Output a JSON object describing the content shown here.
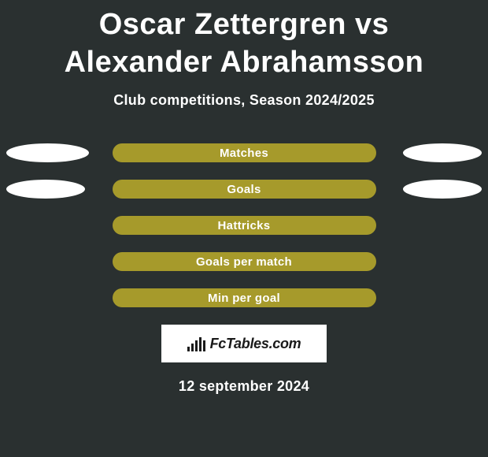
{
  "background_color": "#2a3030",
  "title": "Oscar Zettergren vs Alexander Abrahamsson",
  "title_fontsize": 38,
  "title_color": "#ffffff",
  "subtitle": "Club competitions, Season 2024/2025",
  "subtitle_fontsize": 18,
  "comparison": {
    "type": "horizontal-bar-comparison",
    "center_bar_width": 335,
    "center_bar_color": "#a69a2b",
    "center_bar_text_color": "#ffffff",
    "bubble_color": "#ffffff",
    "rows": [
      {
        "label": "Matches",
        "left_bubble_width": 105,
        "right_bubble_width": 100
      },
      {
        "label": "Goals",
        "left_bubble_width": 100,
        "right_bubble_width": 100
      },
      {
        "label": "Hattricks",
        "left_bubble_width": 0,
        "right_bubble_width": 0
      },
      {
        "label": "Goals per match",
        "left_bubble_width": 0,
        "right_bubble_width": 0
      },
      {
        "label": "Min per goal",
        "left_bubble_width": 0,
        "right_bubble_width": 0
      }
    ]
  },
  "logo": {
    "text": "FcTables.com",
    "box_bg": "#ffffff",
    "text_color": "#1a1a1a",
    "bars": [
      6,
      10,
      14,
      18,
      14
    ]
  },
  "date": "12 september 2024",
  "date_fontsize": 18
}
